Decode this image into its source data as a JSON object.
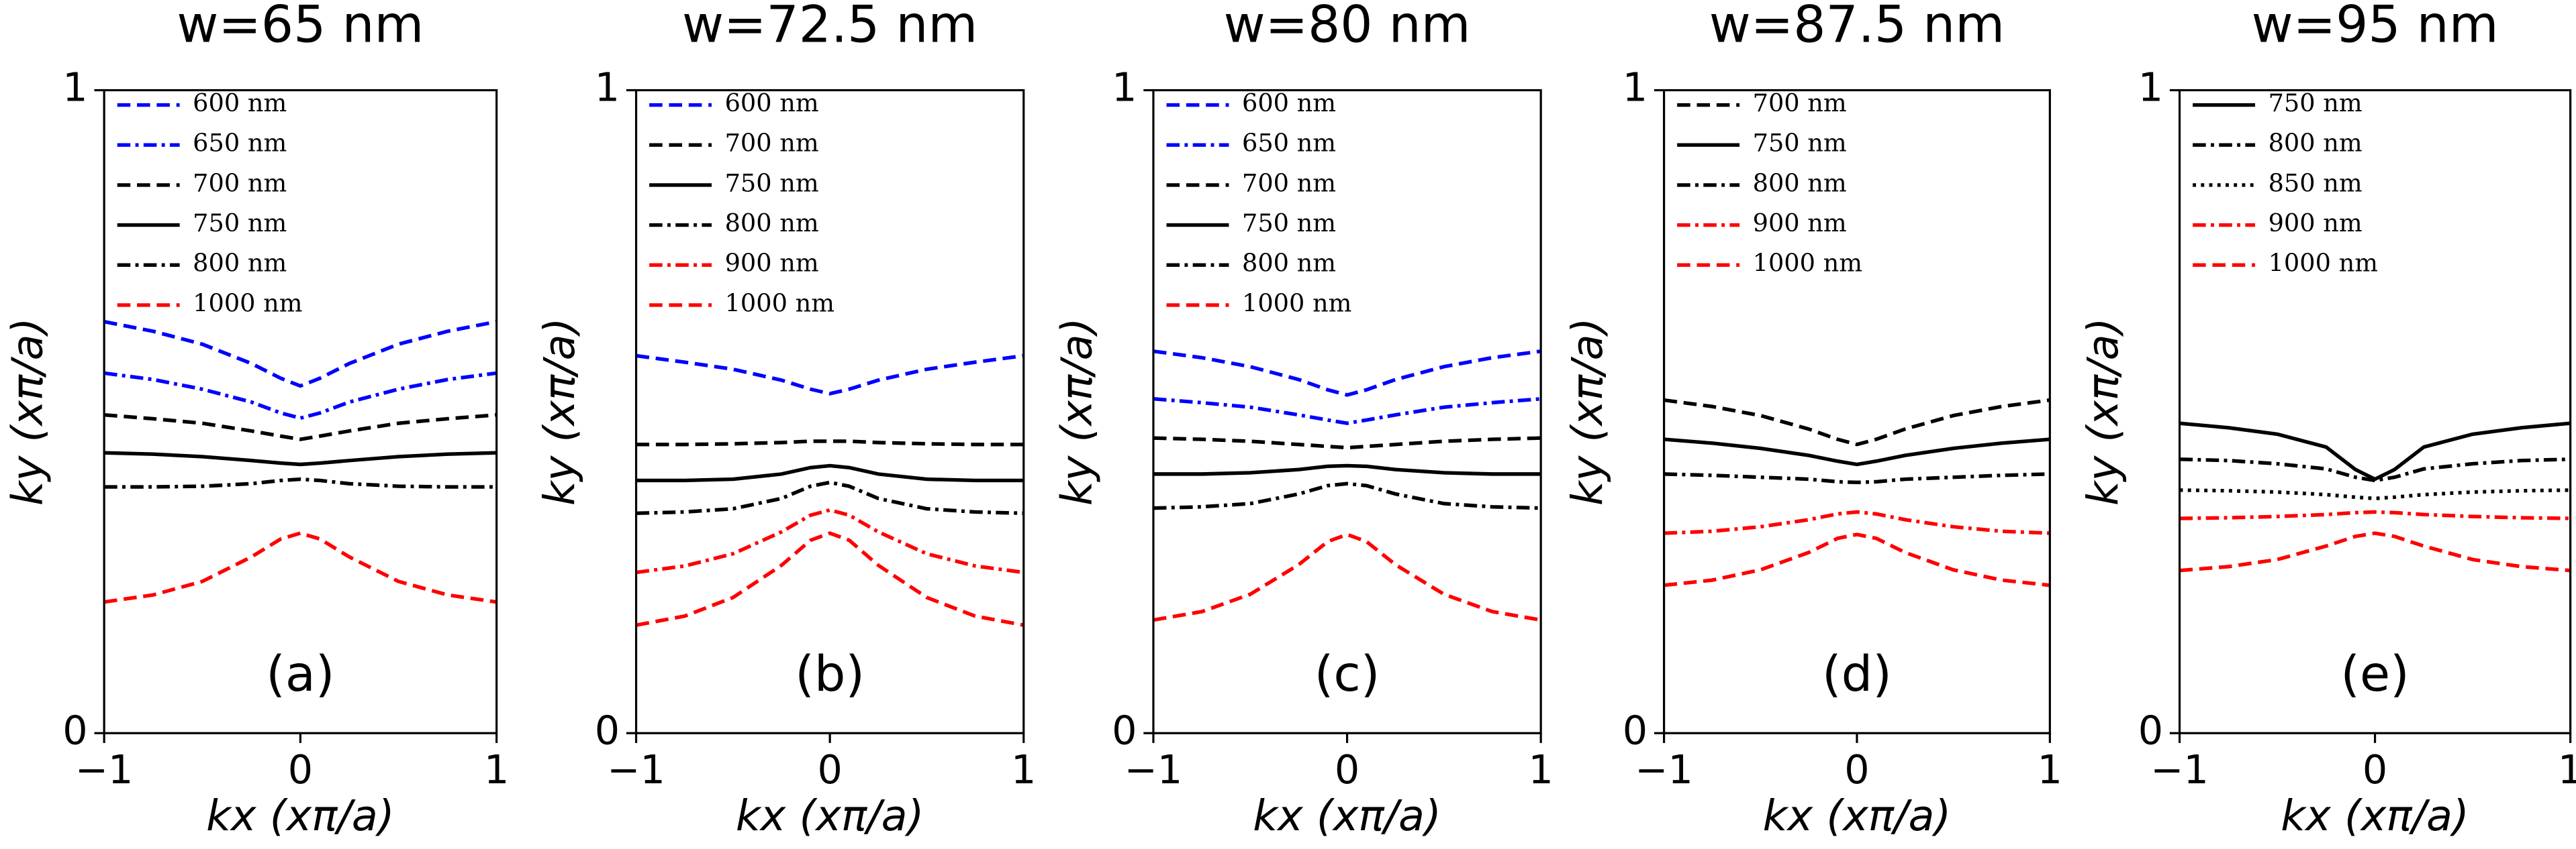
{
  "chart_data": [
    {
      "type": "line",
      "title": "w=65 nm",
      "annotation": "(a)",
      "xlabel": "kx (xπ/a)",
      "ylabel": "ky (xπ/a)",
      "xlim": [
        -1,
        1
      ],
      "ylim": [
        0,
        1
      ],
      "xticks": [
        {
          "value": -1,
          "label": "−1"
        },
        0,
        1
      ],
      "yticks": [
        0,
        1
      ],
      "x": [
        -1,
        -0.75,
        -0.5,
        -0.25,
        -0.1,
        0,
        0.1,
        0.25,
        0.5,
        0.75,
        1
      ],
      "series": [
        {
          "name": "600 nm",
          "color": "#0000ff",
          "style": "dashed",
          "values": [
            0.64,
            0.625,
            0.605,
            0.575,
            0.552,
            0.54,
            0.552,
            0.575,
            0.605,
            0.625,
            0.64
          ]
        },
        {
          "name": "650 nm",
          "color": "#0000ff",
          "style": "dashdot",
          "values": [
            0.56,
            0.55,
            0.535,
            0.515,
            0.498,
            0.49,
            0.498,
            0.515,
            0.535,
            0.55,
            0.56
          ]
        },
        {
          "name": "700 nm",
          "color": "#000000",
          "style": "dashed",
          "values": [
            0.495,
            0.489,
            0.482,
            0.47,
            0.462,
            0.457,
            0.462,
            0.47,
            0.482,
            0.489,
            0.495
          ]
        },
        {
          "name": "750 nm",
          "color": "#000000",
          "style": "solid",
          "values": [
            0.436,
            0.434,
            0.43,
            0.424,
            0.42,
            0.418,
            0.42,
            0.424,
            0.43,
            0.434,
            0.436
          ]
        },
        {
          "name": "800 nm",
          "color": "#000000",
          "style": "dashdot",
          "values": [
            0.383,
            0.383,
            0.384,
            0.388,
            0.393,
            0.395,
            0.393,
            0.388,
            0.384,
            0.383,
            0.383
          ]
        },
        {
          "name": "1000 nm",
          "color": "#ff0000",
          "style": "dashed",
          "values": [
            0.204,
            0.215,
            0.236,
            0.274,
            0.302,
            0.311,
            0.302,
            0.274,
            0.236,
            0.215,
            0.204
          ]
        }
      ]
    },
    {
      "type": "line",
      "title": "w=72.5 nm",
      "annotation": "(b)",
      "xlabel": "kx (xπ/a)",
      "ylabel": "ky (xπ/a)",
      "xlim": [
        -1,
        1
      ],
      "ylim": [
        0,
        1
      ],
      "xticks": [
        {
          "value": -1,
          "label": "−1"
        },
        0,
        1
      ],
      "yticks": [
        0,
        1
      ],
      "x": [
        -1,
        -0.75,
        -0.5,
        -0.25,
        -0.1,
        0,
        0.1,
        0.25,
        0.5,
        0.75,
        1
      ],
      "series": [
        {
          "name": "600 nm",
          "color": "#0000ff",
          "style": "dashed",
          "values": [
            0.587,
            0.577,
            0.566,
            0.549,
            0.535,
            0.528,
            0.535,
            0.549,
            0.566,
            0.577,
            0.587
          ]
        },
        {
          "name": "700 nm",
          "color": "#000000",
          "style": "dashed",
          "values": [
            0.449,
            0.449,
            0.45,
            0.452,
            0.454,
            0.454,
            0.454,
            0.452,
            0.45,
            0.449,
            0.449
          ]
        },
        {
          "name": "750 nm",
          "color": "#000000",
          "style": "solid",
          "values": [
            0.393,
            0.393,
            0.395,
            0.403,
            0.413,
            0.416,
            0.413,
            0.403,
            0.395,
            0.393,
            0.393
          ]
        },
        {
          "name": "800 nm",
          "color": "#000000",
          "style": "dashdot",
          "values": [
            0.342,
            0.344,
            0.349,
            0.365,
            0.384,
            0.39,
            0.384,
            0.365,
            0.349,
            0.344,
            0.342
          ]
        },
        {
          "name": "900 nm",
          "color": "#ff0000",
          "style": "dashdot",
          "values": [
            0.25,
            0.26,
            0.279,
            0.313,
            0.339,
            0.347,
            0.339,
            0.313,
            0.279,
            0.26,
            0.25
          ]
        },
        {
          "name": "1000 nm",
          "color": "#ff0000",
          "style": "dashed",
          "values": [
            0.168,
            0.182,
            0.211,
            0.261,
            0.3,
            0.311,
            0.3,
            0.261,
            0.211,
            0.182,
            0.168
          ]
        }
      ]
    },
    {
      "type": "line",
      "title": "w=80 nm",
      "annotation": "(c)",
      "xlabel": "kx (xπ/a)",
      "ylabel": "ky (xπ/a)",
      "xlim": [
        -1,
        1
      ],
      "ylim": [
        0,
        1
      ],
      "xticks": [
        {
          "value": -1,
          "label": "−1"
        },
        0,
        1
      ],
      "yticks": [
        0,
        1
      ],
      "x": [
        -1,
        -0.75,
        -0.5,
        -0.25,
        -0.1,
        0,
        0.1,
        0.25,
        0.5,
        0.75,
        1
      ],
      "series": [
        {
          "name": "600 nm",
          "color": "#0000ff",
          "style": "dashed",
          "values": [
            0.594,
            0.584,
            0.57,
            0.55,
            0.534,
            0.526,
            0.534,
            0.55,
            0.57,
            0.584,
            0.594
          ]
        },
        {
          "name": "650 nm",
          "color": "#0000ff",
          "style": "dashdot",
          "values": [
            0.52,
            0.514,
            0.507,
            0.495,
            0.487,
            0.482,
            0.487,
            0.495,
            0.507,
            0.514,
            0.52
          ]
        },
        {
          "name": "700 nm",
          "color": "#000000",
          "style": "dashed",
          "values": [
            0.459,
            0.457,
            0.454,
            0.449,
            0.446,
            0.444,
            0.446,
            0.449,
            0.454,
            0.457,
            0.459
          ]
        },
        {
          "name": "750 nm",
          "color": "#000000",
          "style": "solid",
          "values": [
            0.403,
            0.403,
            0.405,
            0.41,
            0.415,
            0.416,
            0.415,
            0.41,
            0.405,
            0.403,
            0.403
          ]
        },
        {
          "name": "800 nm",
          "color": "#000000",
          "style": "dashdot",
          "values": [
            0.35,
            0.352,
            0.357,
            0.372,
            0.385,
            0.388,
            0.385,
            0.372,
            0.357,
            0.352,
            0.35
          ]
        },
        {
          "name": "1000 nm",
          "color": "#ff0000",
          "style": "dashed",
          "values": [
            0.176,
            0.189,
            0.216,
            0.262,
            0.298,
            0.309,
            0.298,
            0.262,
            0.216,
            0.189,
            0.176
          ]
        }
      ]
    },
    {
      "type": "line",
      "title": "w=87.5 nm",
      "annotation": "(d)",
      "xlabel": "kx (xπ/a)",
      "ylabel": "ky (xπ/a)",
      "xlim": [
        -1,
        1
      ],
      "ylim": [
        0,
        1
      ],
      "xticks": [
        {
          "value": -1,
          "label": "−1"
        },
        0,
        1
      ],
      "yticks": [
        0,
        1
      ],
      "x": [
        -1,
        -0.75,
        -0.5,
        -0.25,
        -0.1,
        0,
        0.1,
        0.25,
        0.5,
        0.75,
        1
      ],
      "series": [
        {
          "name": "700 nm",
          "color": "#000000",
          "style": "dashed",
          "values": [
            0.518,
            0.508,
            0.494,
            0.473,
            0.457,
            0.449,
            0.457,
            0.473,
            0.494,
            0.508,
            0.518
          ]
        },
        {
          "name": "750 nm",
          "color": "#000000",
          "style": "solid",
          "values": [
            0.457,
            0.451,
            0.443,
            0.432,
            0.423,
            0.418,
            0.423,
            0.432,
            0.443,
            0.451,
            0.457
          ]
        },
        {
          "name": "800 nm",
          "color": "#000000",
          "style": "dashdot",
          "values": [
            0.403,
            0.401,
            0.398,
            0.395,
            0.391,
            0.39,
            0.391,
            0.395,
            0.398,
            0.401,
            0.403
          ]
        },
        {
          "name": "900 nm",
          "color": "#ff0000",
          "style": "dashdot",
          "values": [
            0.311,
            0.314,
            0.321,
            0.332,
            0.341,
            0.344,
            0.341,
            0.332,
            0.321,
            0.314,
            0.311
          ]
        },
        {
          "name": "1000 nm",
          "color": "#ff0000",
          "style": "dashed",
          "values": [
            0.23,
            0.238,
            0.254,
            0.281,
            0.303,
            0.309,
            0.303,
            0.281,
            0.254,
            0.238,
            0.23
          ]
        }
      ]
    },
    {
      "type": "line",
      "title": "w=95 nm",
      "annotation": "(e)",
      "xlabel": "kx (xπ/a)",
      "ylabel": "ky (xπ/a)",
      "xlim": [
        -1,
        1
      ],
      "ylim": [
        0,
        1
      ],
      "xticks": [
        {
          "value": -1,
          "label": "−1"
        },
        0,
        1
      ],
      "yticks": [
        0,
        1
      ],
      "x": [
        -1,
        -0.75,
        -0.5,
        -0.25,
        -0.1,
        0,
        0.1,
        0.25,
        0.5,
        0.75,
        1
      ],
      "series": [
        {
          "name": "750 nm",
          "color": "#000000",
          "style": "solid",
          "values": [
            0.482,
            0.475,
            0.465,
            0.445,
            0.41,
            0.395,
            0.41,
            0.445,
            0.465,
            0.475,
            0.482
          ]
        },
        {
          "name": "800 nm",
          "color": "#000000",
          "style": "dashdot",
          "values": [
            0.426,
            0.424,
            0.419,
            0.411,
            0.398,
            0.393,
            0.398,
            0.411,
            0.419,
            0.424,
            0.426
          ]
        },
        {
          "name": "850 nm",
          "color": "#000000",
          "style": "dotted",
          "values": [
            0.378,
            0.377,
            0.375,
            0.371,
            0.367,
            0.365,
            0.367,
            0.371,
            0.375,
            0.377,
            0.378
          ]
        },
        {
          "name": "900 nm",
          "color": "#ff0000",
          "style": "dashdot",
          "values": [
            0.334,
            0.335,
            0.337,
            0.34,
            0.343,
            0.344,
            0.343,
            0.34,
            0.337,
            0.335,
            0.334
          ]
        },
        {
          "name": "1000 nm",
          "color": "#ff0000",
          "style": "dashed",
          "values": [
            0.253,
            0.259,
            0.27,
            0.291,
            0.306,
            0.311,
            0.306,
            0.291,
            0.27,
            0.259,
            0.253
          ]
        }
      ]
    }
  ]
}
